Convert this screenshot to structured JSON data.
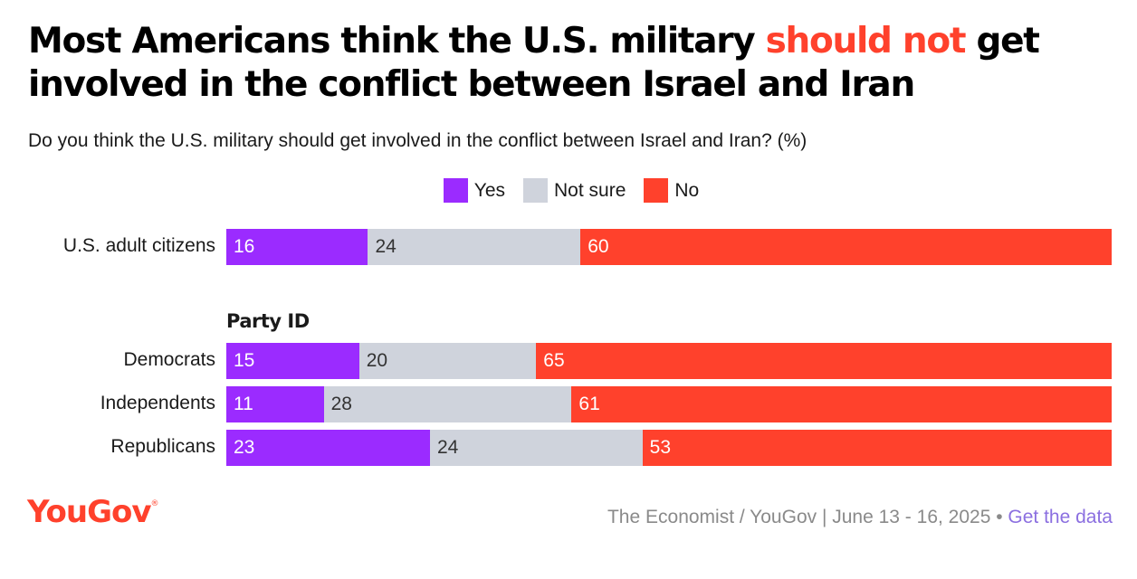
{
  "title": {
    "part1": "Most Americans think the U.S. military ",
    "highlight": "should not",
    "part2": " get involved in the conflict between Israel and Iran"
  },
  "subtitle": "Do you think the U.S. military should get involved in the conflict between Israel and Iran? (%)",
  "colors": {
    "yes": "#9b2bff",
    "unsure": "#cfd3dc",
    "no": "#ff412c",
    "highlight": "#ff412c",
    "link": "#8b6fe0"
  },
  "chart_data": {
    "type": "bar",
    "orientation": "horizontal",
    "stacked": true,
    "legend": [
      "Yes",
      "Not sure",
      "No"
    ],
    "legend_position": "top-center",
    "group_label": "Party ID",
    "categories": [
      "U.S. adult citizens",
      "Democrats",
      "Independents",
      "Republicans"
    ],
    "series": [
      {
        "name": "Yes",
        "values": [
          16,
          15,
          11,
          23
        ]
      },
      {
        "name": "Not sure",
        "values": [
          24,
          20,
          28,
          24
        ]
      },
      {
        "name": "No",
        "values": [
          60,
          65,
          61,
          53
        ]
      }
    ],
    "xlim": [
      0,
      100
    ]
  },
  "footer": {
    "logo": "YouGov",
    "logo_mark": "®",
    "source": "The Economist / YouGov | June 13 - 16, 2025 • ",
    "link": "Get the data"
  }
}
